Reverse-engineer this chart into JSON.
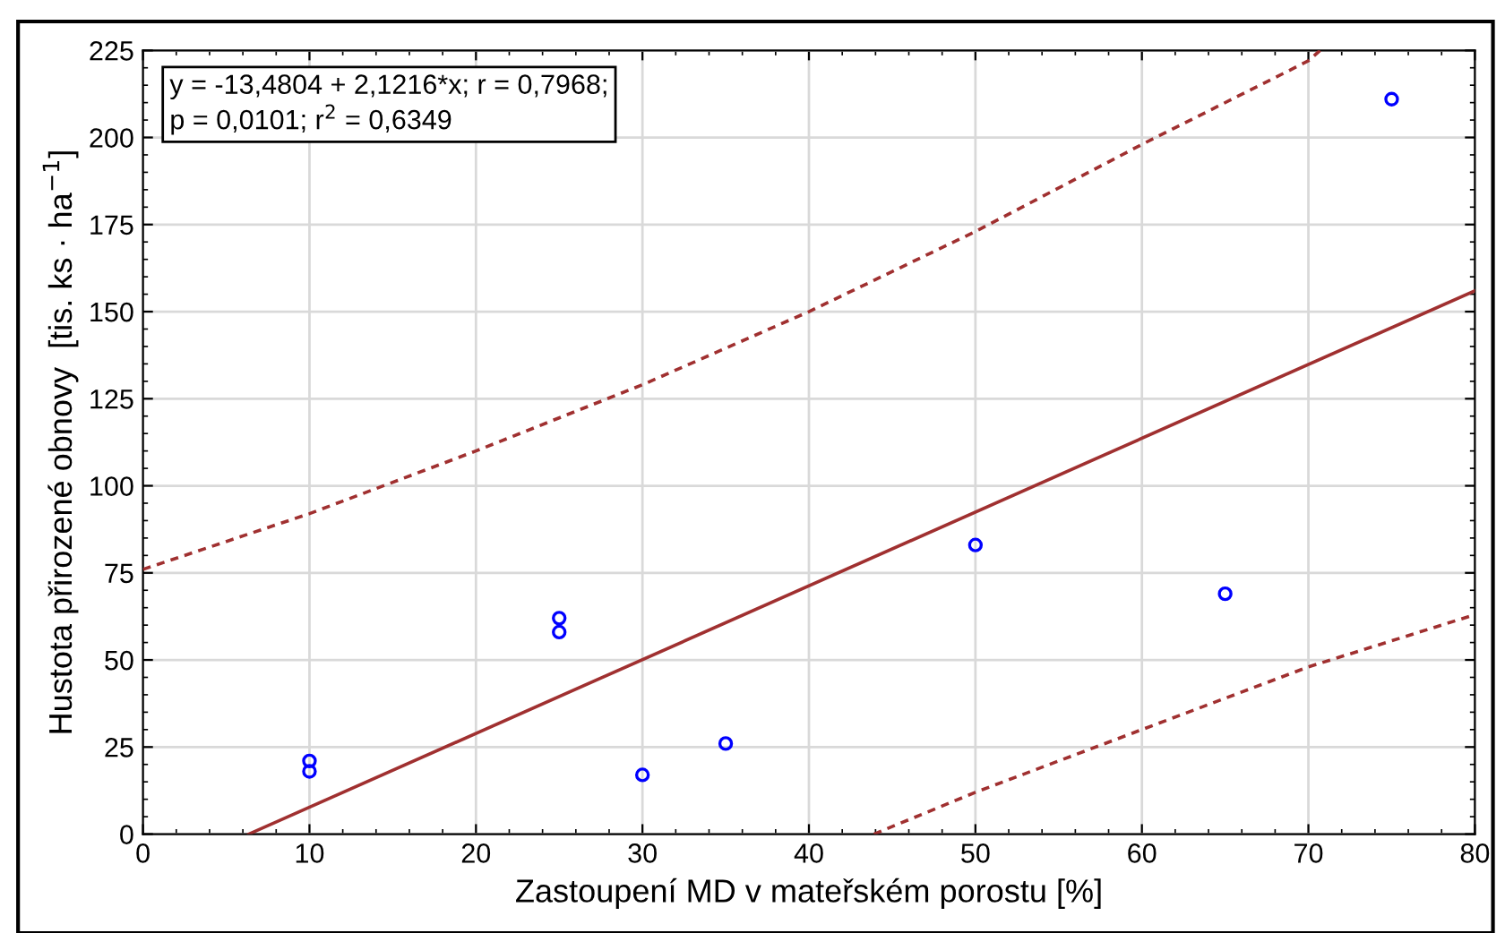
{
  "chart_data": {
    "type": "scatter",
    "xlabel": "Zastoupení MD v mateřském porostu [%]",
    "ylabel": "Hustota přirozené obnovy  [tis. ks · ha$^{−1}$]",
    "annotations": [
      "y = -13,4804 + 2,1216*x; r = 0,7968;\np = 0,0101; r$^{2}$ = 0,6349"
    ],
    "xlim": [
      0,
      80
    ],
    "xticks": [
      0,
      10,
      20,
      30,
      40,
      50,
      60,
      70,
      80
    ],
    "ylim": [
      0,
      225
    ],
    "yticks": [
      0,
      25,
      50,
      75,
      100,
      125,
      150,
      175,
      200,
      225
    ],
    "grid": true,
    "legend": false,
    "series": [
      {
        "marker": "circle",
        "color": "#0000ff",
        "x": [
          10,
          10,
          25,
          25,
          30,
          35,
          50,
          65,
          75
        ],
        "values": [
          21,
          18,
          62,
          58,
          17,
          26,
          83,
          69,
          211
        ]
      },
      {
        "type": "line",
        "line_style": "solid",
        "color": "#a03030",
        "x": [
          6.35,
          80
        ],
        "values": [
          0,
          156
        ]
      },
      {
        "type": "line",
        "line_style": "dashed",
        "color": "#a03030",
        "x": [
          0,
          10,
          20,
          30,
          40,
          50,
          60,
          70,
          70.7
        ],
        "values": [
          76,
          92,
          110,
          129,
          150,
          173,
          198,
          222,
          225
        ]
      },
      {
        "type": "line",
        "line_style": "dashed",
        "color": "#a03030",
        "x": [
          43.9,
          50,
          60,
          70,
          80
        ],
        "values": [
          0,
          12,
          30,
          48,
          63
        ]
      }
    ]
  }
}
